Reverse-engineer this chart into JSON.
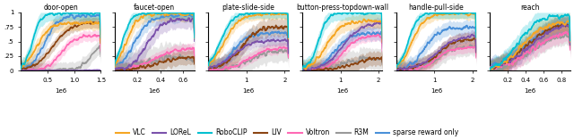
{
  "subplots": [
    {
      "title": "door-open",
      "xlim": [
        0,
        1500000
      ],
      "xticks": [
        500000,
        1000000,
        1500000
      ],
      "xticklabels": [
        "0.5",
        "1.0",
        "1.5"
      ]
    },
    {
      "title": "faucet-open",
      "xlim": [
        0,
        700000
      ],
      "xticks": [
        200000,
        400000,
        600000
      ],
      "xticklabels": [
        "0.2",
        "0.4",
        "0.6"
      ]
    },
    {
      "title": "plate-slide-side",
      "xlim": [
        0,
        2100000
      ],
      "xticks": [
        1000000,
        2000000
      ],
      "xticklabels": [
        "1",
        "2"
      ]
    },
    {
      "title": "button-press-topdown-wall",
      "xlim": [
        0,
        2100000
      ],
      "xticks": [
        1000000,
        2000000
      ],
      "xticklabels": [
        "1",
        "2"
      ]
    },
    {
      "title": "handle-pull-side",
      "xlim": [
        0,
        2100000
      ],
      "xticks": [
        1000000,
        2000000
      ],
      "xticklabels": [
        "1",
        "2"
      ]
    },
    {
      "title": "reach",
      "xlim": [
        0,
        900000
      ],
      "xticks": [
        200000,
        400000,
        600000,
        800000
      ],
      "xticklabels": [
        "0.2",
        "0.4",
        "0.6",
        "0.8"
      ]
    }
  ],
  "legend_entries": [
    {
      "label": "VLC",
      "color": "#f5a623"
    },
    {
      "label": "LOReL",
      "color": "#7b52ab"
    },
    {
      "label": "RoboCLIP",
      "color": "#00c0d0"
    },
    {
      "label": "LIV",
      "color": "#8b4513"
    },
    {
      "label": "Voltron",
      "color": "#ff69b4"
    },
    {
      "label": "R3M",
      "color": "#999999"
    },
    {
      "label": "sparse reward only",
      "color": "#4a90d9"
    }
  ],
  "ylim": [
    0,
    1
  ],
  "yticks": [
    0,
    0.25,
    0.5,
    0.75,
    1.0
  ],
  "yticklabels": [
    "0",
    ".25",
    ".5",
    ".75",
    "1"
  ],
  "figsize": [
    6.4,
    1.57
  ],
  "dpi": 100
}
